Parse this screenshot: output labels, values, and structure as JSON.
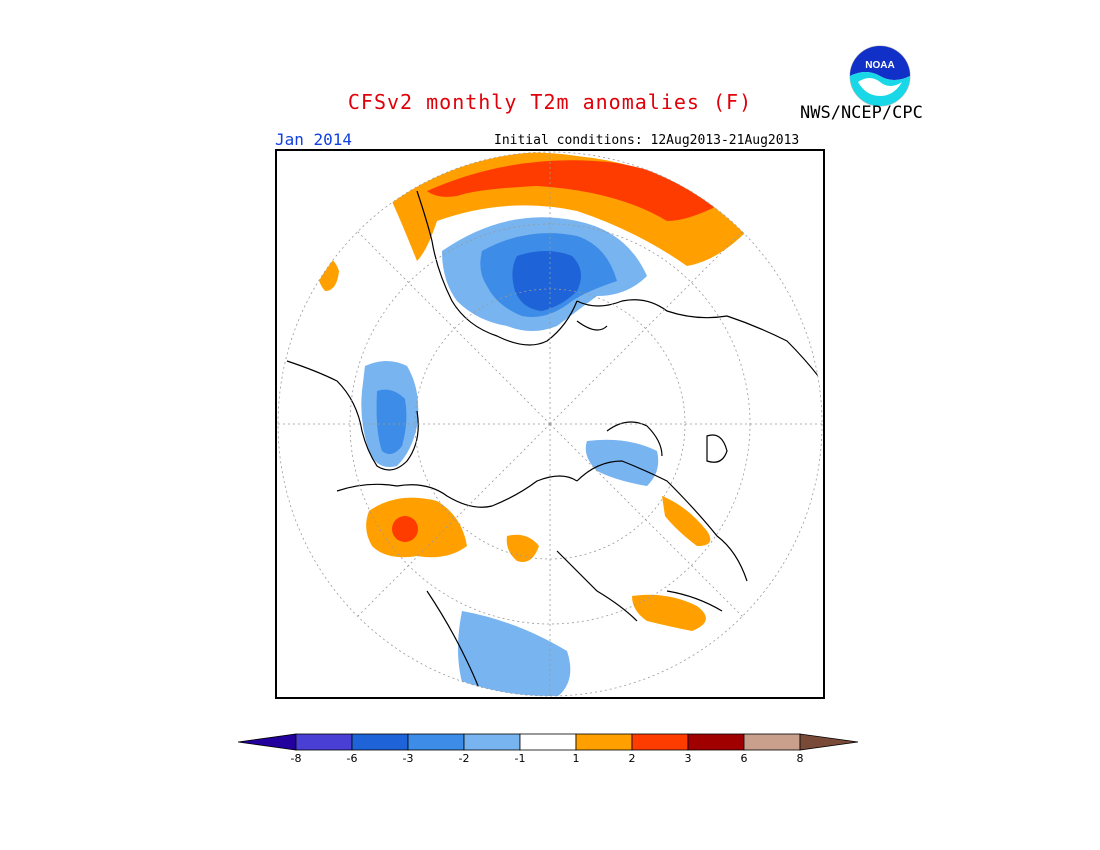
{
  "header": {
    "title": "CFSv2 monthly T2m anomalies (F)",
    "agency": "NWS/NCEP/CPC",
    "month": "Jan 2014",
    "initial_conditions": "Initial conditions: 12Aug2013-21Aug2013"
  },
  "logo": {
    "text": "NOAA",
    "icon": "noaa-logo-icon"
  },
  "legend": {
    "colors": [
      "#23009e",
      "#4a3fd4",
      "#1e64d8",
      "#3c8ce8",
      "#78b4f0",
      "#ffffff",
      "#ffa000",
      "#ff3c00",
      "#a00000",
      "#c8a08c",
      "#7a4a38"
    ],
    "tick_labels": [
      "-8",
      "-6",
      "-3",
      "-2",
      "-1",
      "1",
      "2",
      "3",
      "6",
      "8"
    ]
  },
  "colors": {
    "title": "#e0000a",
    "month": "#1040e0",
    "coastline": "#000000"
  }
}
